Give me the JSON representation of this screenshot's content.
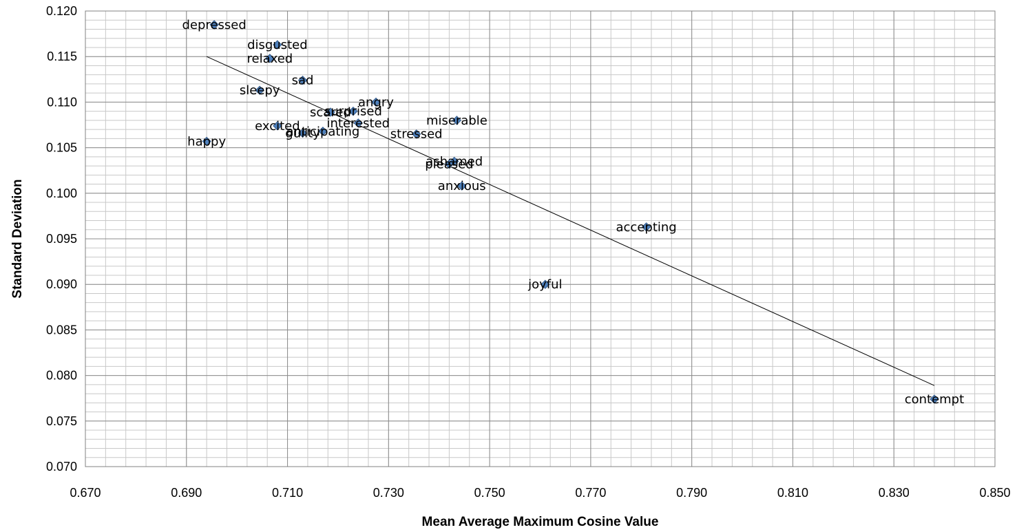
{
  "chart_data": {
    "type": "scatter",
    "title": "",
    "xlabel": "Mean Average Maximum Cosine Value",
    "ylabel": "Standard Deviation",
    "xlim": [
      0.67,
      0.85
    ],
    "ylim": [
      0.07,
      0.12
    ],
    "x_major_step": 0.02,
    "x_minor_step": 0.004,
    "y_major_step": 0.005,
    "y_minor_step": 0.001,
    "x_tick_labels": [
      "0.670",
      "0.690",
      "0.710",
      "0.730",
      "0.750",
      "0.770",
      "0.790",
      "0.810",
      "0.830",
      "0.850"
    ],
    "y_tick_labels": [
      "0.070",
      "0.075",
      "0.080",
      "0.085",
      "0.090",
      "0.095",
      "0.100",
      "0.105",
      "0.110",
      "0.115",
      "0.120"
    ],
    "grid": true,
    "legend": "none",
    "marker_color": "#4F81BD",
    "marker_edge_color": "#385D8A",
    "trendline": {
      "type": "linear",
      "x": [
        0.694,
        0.838
      ],
      "y": [
        0.115,
        0.0789
      ],
      "color": "#000000"
    },
    "points": [
      {
        "label": "depressed",
        "x": 0.6955,
        "y": 0.1185
      },
      {
        "label": "disgusted",
        "x": 0.708,
        "y": 0.1163
      },
      {
        "label": "relaxed",
        "x": 0.7065,
        "y": 0.1148
      },
      {
        "label": "sad",
        "x": 0.713,
        "y": 0.1124
      },
      {
        "label": "sleepy",
        "x": 0.7045,
        "y": 0.1113
      },
      {
        "label": "angry",
        "x": 0.7275,
        "y": 0.11
      },
      {
        "label": "scared",
        "x": 0.7185,
        "y": 0.1089
      },
      {
        "label": "surprised",
        "x": 0.723,
        "y": 0.109
      },
      {
        "label": "interested",
        "x": 0.724,
        "y": 0.1077
      },
      {
        "label": "miserable",
        "x": 0.7435,
        "y": 0.108
      },
      {
        "label": "excited",
        "x": 0.708,
        "y": 0.1074
      },
      {
        "label": "anticipating",
        "x": 0.717,
        "y": 0.1068
      },
      {
        "label": "guilty",
        "x": 0.713,
        "y": 0.1066
      },
      {
        "label": "stressed",
        "x": 0.7355,
        "y": 0.1065
      },
      {
        "label": "happy",
        "x": 0.694,
        "y": 0.1057
      },
      {
        "label": "ashamed",
        "x": 0.743,
        "y": 0.1035
      },
      {
        "label": "pleased",
        "x": 0.742,
        "y": 0.1032
      },
      {
        "label": "anxious",
        "x": 0.7445,
        "y": 0.1008
      },
      {
        "label": "accepting",
        "x": 0.781,
        "y": 0.0963
      },
      {
        "label": "joyful",
        "x": 0.761,
        "y": 0.09
      },
      {
        "label": "contempt",
        "x": 0.838,
        "y": 0.0774
      }
    ]
  }
}
